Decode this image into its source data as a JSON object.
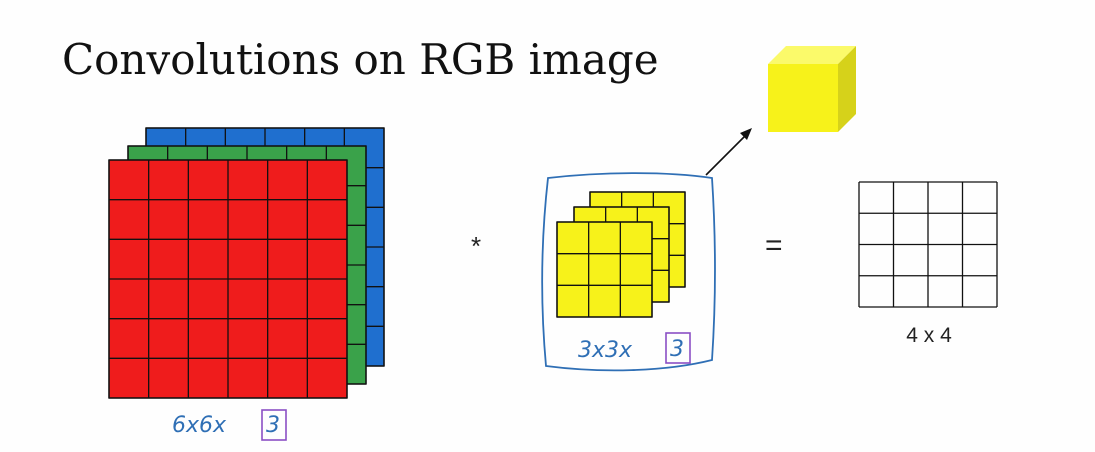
{
  "slide": {
    "title": "Convolutions on RGB image",
    "operator_convolve": "*",
    "operator_equals": "=",
    "output_label": "4 x 4"
  },
  "annotations": {
    "input_dims_prefix": "6x6x",
    "input_channels_boxed": "3",
    "filter_dims_prefix": "3x3x",
    "filter_channels_boxed": "3"
  },
  "input_volume": {
    "rows": 6,
    "cols": 6,
    "channels": [
      "blue",
      "green",
      "red"
    ]
  },
  "filter_volume": {
    "rows": 3,
    "cols": 3,
    "depth": 3
  },
  "output_grid": {
    "rows": 4,
    "cols": 4
  },
  "colors": {
    "red": "#ef1c1c",
    "green": "#3aa24a",
    "blue": "#1f6fcf",
    "yellow": "#f7f21a",
    "yellow_side": "#d6d21a",
    "yellow_top": "#fbfa6a",
    "grid_line": "#111111",
    "ink_blue": "#2f6fb5",
    "ink_purple": "#8a4fc4"
  }
}
